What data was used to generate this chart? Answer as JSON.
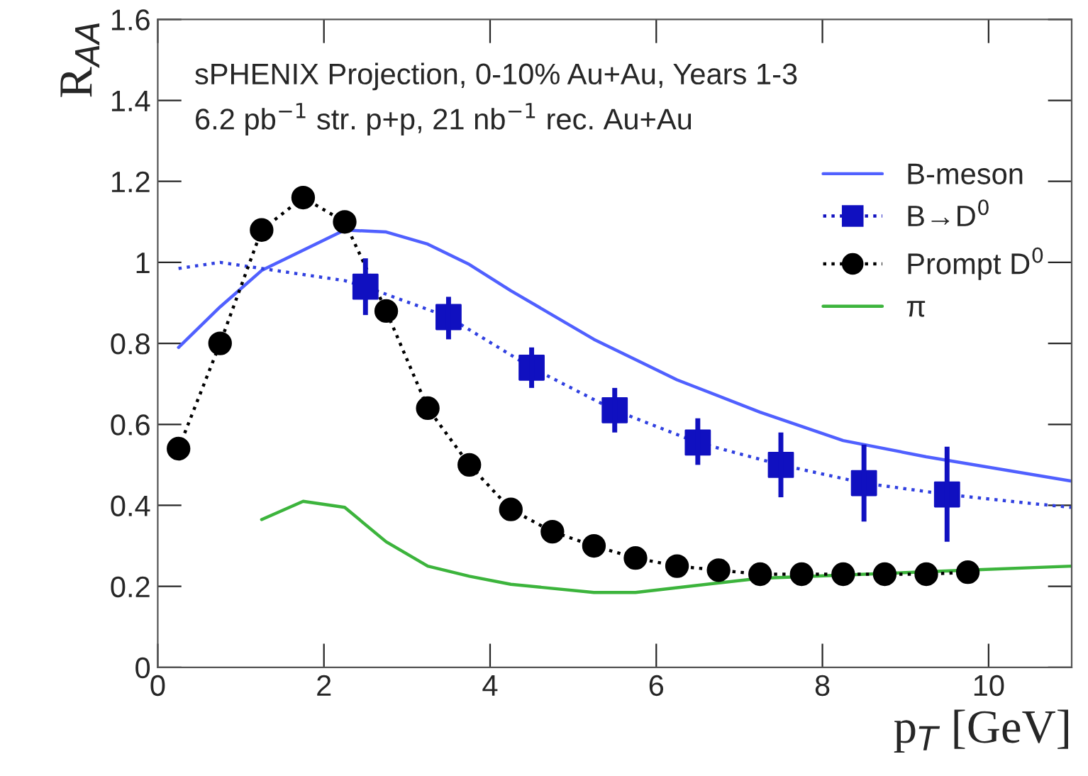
{
  "chart_data": {
    "type": "line",
    "annotations": [
      "sPHENIX Projection, 0-10% Au+Au, Years 1-3",
      "6.2 pb$^{−1}$ str. p+p, 21 nb$^{−1}$ rec. Au+Au"
    ],
    "xlabel": "p$_{T}$ [GeV]",
    "ylabel": "R$_{AA}$",
    "xlim": [
      0,
      11
    ],
    "xticks": [
      0,
      2,
      4,
      6,
      8,
      10
    ],
    "ylim": [
      0,
      1.6
    ],
    "yticks": [
      0,
      0.2,
      0.4,
      0.6,
      0.8,
      1,
      1.2,
      1.4,
      1.6
    ],
    "legend": "top right",
    "grid": false,
    "series": [
      {
        "name": "B-meson",
        "color": "#5060ff",
        "line_style": "solid",
        "marker": "none",
        "x": [
          0.25,
          0.75,
          1.25,
          1.75,
          2.25,
          2.75,
          3.25,
          3.75,
          4.25,
          4.75,
          5.25,
          6.25,
          7.25,
          8.25,
          9.25,
          11
        ],
        "values": [
          0.79,
          0.89,
          0.98,
          1.03,
          1.08,
          1.075,
          1.045,
          0.995,
          0.93,
          0.87,
          0.81,
          0.71,
          0.63,
          0.56,
          0.52,
          0.46
        ]
      },
      {
        "color": "#3040e0",
        "line_style": "dotted",
        "marker": "none",
        "x": [
          0.25,
          0.75,
          1.25,
          1.75,
          2.25,
          2.5,
          3.5,
          4.5,
          5.5,
          6.5,
          7.5,
          8.5,
          9.5,
          10.5,
          11
        ],
        "values": [
          0.985,
          1.0,
          0.985,
          0.97,
          0.955,
          0.94,
          0.865,
          0.74,
          0.635,
          0.555,
          0.5,
          0.455,
          0.427,
          0.405,
          0.395
        ]
      },
      {
        "name": "B→D$^{0}$",
        "type": "scatter",
        "color": "#1010c0",
        "marker": "square",
        "line_style": "dotted",
        "x": [
          2.5,
          3.5,
          4.5,
          5.5,
          6.5,
          7.5,
          8.5,
          9.5
        ],
        "values": [
          0.94,
          0.865,
          0.74,
          0.635,
          0.555,
          0.5,
          0.455,
          0.427
        ],
        "errors": [
          [
            0.87,
            1.01
          ],
          [
            0.81,
            0.915
          ],
          [
            0.69,
            0.79
          ],
          [
            0.58,
            0.69
          ],
          [
            0.5,
            0.615
          ],
          [
            0.42,
            0.58
          ],
          [
            0.36,
            0.55
          ],
          [
            0.31,
            0.545
          ]
        ]
      },
      {
        "name": "Prompt D$^{0}$",
        "color": "#000000",
        "marker": "circle",
        "line_style": "dotted",
        "x": [
          0.25,
          0.75,
          1.25,
          1.75,
          2.25,
          2.75,
          3.25,
          3.75,
          4.25,
          4.75,
          5.25,
          5.75,
          6.25,
          6.75,
          7.25,
          7.75,
          8.25,
          8.75,
          9.25,
          9.75
        ],
        "values": [
          0.54,
          0.8,
          1.08,
          1.16,
          1.1,
          0.88,
          0.64,
          0.5,
          0.39,
          0.335,
          0.3,
          0.27,
          0.25,
          0.24,
          0.23,
          0.23,
          0.23,
          0.23,
          0.23,
          0.235
        ]
      },
      {
        "name": "π",
        "color": "#3cb43c",
        "line_style": "solid",
        "marker": "none",
        "x": [
          1.25,
          1.75,
          2.25,
          2.75,
          3.25,
          3.75,
          4.25,
          5.25,
          5.75,
          7.25,
          9.75,
          11
        ],
        "values": [
          0.365,
          0.41,
          0.395,
          0.31,
          0.25,
          0.225,
          0.205,
          0.185,
          0.185,
          0.22,
          0.24,
          0.25
        ]
      }
    ]
  }
}
